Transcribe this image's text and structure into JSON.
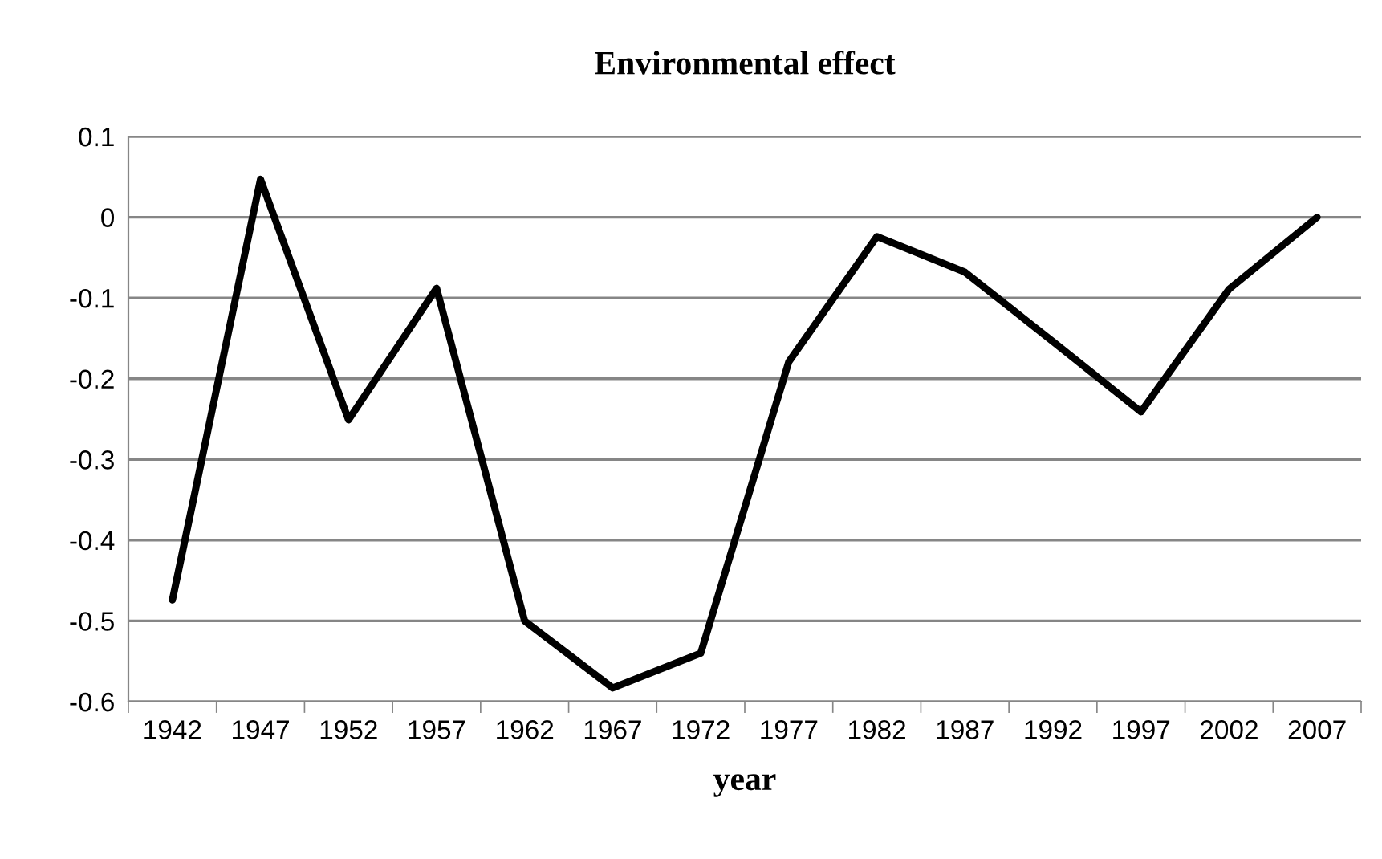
{
  "chart_data": {
    "type": "line",
    "title": "Environmental effect",
    "xlabel": "year",
    "categories": [
      "1942",
      "1947",
      "1952",
      "1957",
      "1962",
      "1967",
      "1972",
      "1977",
      "1982",
      "1987",
      "1992",
      "1997",
      "2002",
      "2007"
    ],
    "series": [
      {
        "color": "#000000",
        "values": [
          -0.474,
          0.047,
          -0.251,
          -0.088,
          -0.5,
          -0.583,
          -0.54,
          -0.179,
          -0.024,
          -0.068,
          -0.154,
          -0.241,
          -0.089,
          0
        ]
      }
    ],
    "ylim": [
      -0.6,
      0.1
    ],
    "yticks": [
      -0.6,
      -0.5,
      -0.4,
      -0.3,
      -0.2,
      -0.1,
      0,
      0.1
    ],
    "grid": "y",
    "legend": false,
    "marker": "none",
    "line_style": "solid"
  }
}
